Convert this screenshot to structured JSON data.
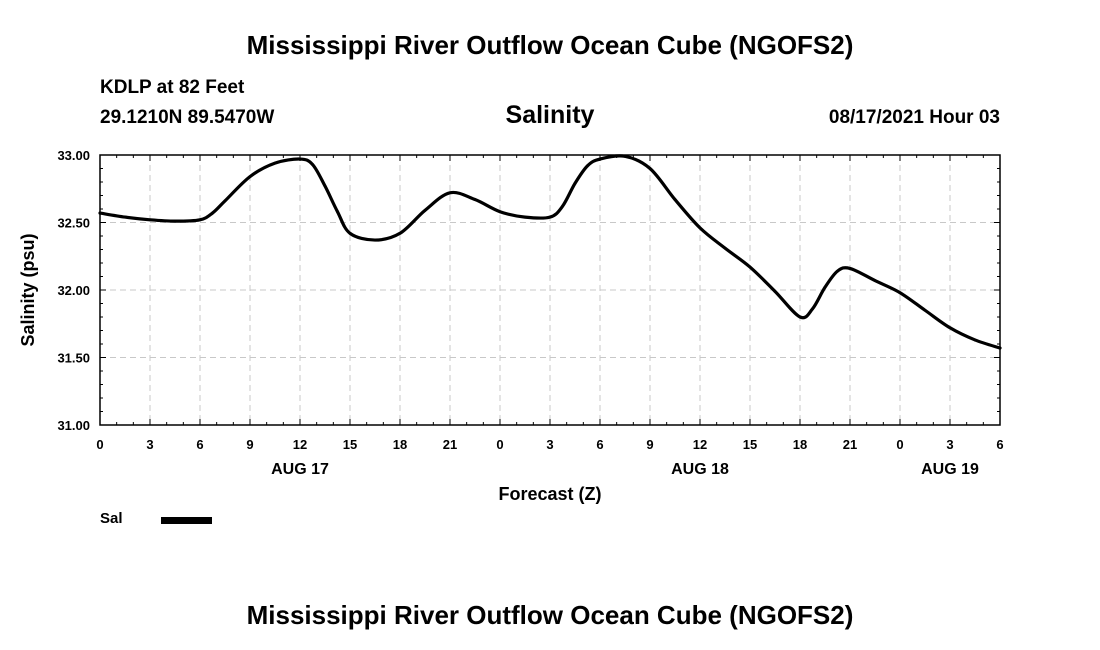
{
  "header": {
    "title": "Mississippi River Outflow Ocean Cube (NGOFS2)",
    "station": "KDLP at 82 Feet",
    "coordinates": "29.1210N  89.5470W",
    "variable": "Salinity",
    "datetime": "08/17/2021 Hour 03"
  },
  "footer": {
    "title": "Mississippi River Outflow Ocean Cube (NGOFS2)"
  },
  "legend": {
    "label": "Sal",
    "color": "#000000"
  },
  "chart_data": {
    "type": "line",
    "title": "Salinity",
    "xlabel": "Forecast (Z)",
    "ylabel": "Salinity (psu)",
    "xlim": [
      0,
      54
    ],
    "ylim": [
      31.0,
      33.0
    ],
    "grid": true,
    "yticks": [
      31.0,
      31.5,
      32.0,
      32.5,
      33.0
    ],
    "ytick_labels": [
      "31.00",
      "31.50",
      "32.00",
      "32.50",
      "33.00"
    ],
    "xticks": [
      0,
      3,
      6,
      9,
      12,
      15,
      18,
      21,
      24,
      27,
      30,
      33,
      36,
      39,
      42,
      45,
      48,
      51,
      54
    ],
    "xtick_labels": [
      "0",
      "3",
      "6",
      "9",
      "12",
      "15",
      "18",
      "21",
      "0",
      "3",
      "6",
      "9",
      "12",
      "15",
      "18",
      "21",
      "0",
      "3",
      "6"
    ],
    "date_labels": [
      {
        "x": 12,
        "label": "AUG 17"
      },
      {
        "x": 36,
        "label": "AUG 18"
      },
      {
        "x": 51,
        "label": "AUG 19"
      }
    ],
    "series": [
      {
        "name": "Sal",
        "color": "#000000",
        "x": [
          0,
          1.5,
          3,
          4.5,
          6,
          6.75,
          7.5,
          9,
          10.5,
          12,
          12.75,
          13.5,
          14.25,
          15,
          16.5,
          18,
          19.5,
          21,
          22.5,
          24,
          25.5,
          27,
          27.75,
          28.5,
          29.25,
          30,
          31.5,
          33,
          34.5,
          36,
          37.5,
          39,
          40.5,
          42,
          42.75,
          43.5,
          44.25,
          45,
          46.5,
          48,
          49.5,
          51,
          52.5,
          54
        ],
        "y": [
          32.57,
          32.54,
          32.52,
          32.51,
          32.52,
          32.57,
          32.66,
          32.84,
          32.94,
          32.97,
          32.93,
          32.77,
          32.58,
          32.42,
          32.37,
          32.42,
          32.59,
          32.72,
          32.67,
          32.58,
          32.54,
          32.54,
          32.62,
          32.79,
          32.92,
          32.97,
          32.99,
          32.9,
          32.67,
          32.46,
          32.31,
          32.17,
          31.99,
          31.8,
          31.86,
          32.02,
          32.14,
          32.16,
          32.07,
          31.98,
          31.85,
          31.72,
          31.63,
          31.57
        ]
      }
    ]
  }
}
